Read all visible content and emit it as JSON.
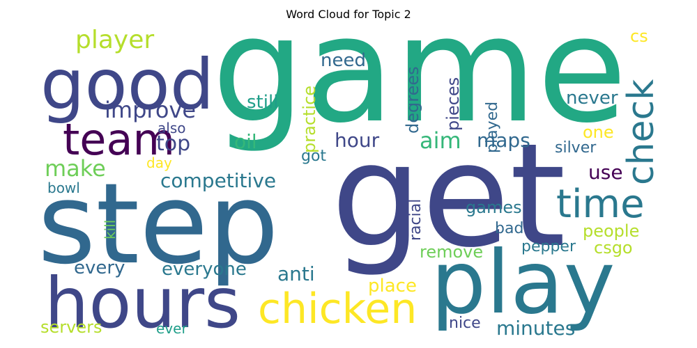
{
  "title": "Word Cloud for Topic 2",
  "words": {
    "game": "game",
    "get": "get",
    "step": "step",
    "play": "play",
    "hours": "hours",
    "good": "good",
    "chicken": "chicken",
    "team": "team",
    "check": "check",
    "time": "time",
    "player": "player",
    "improve": "improve",
    "top": "top",
    "make": "make",
    "competitive": "competitive",
    "every": "every",
    "everyone": "everyone",
    "servers": "servers",
    "ever": "ever",
    "also": "also",
    "day": "day",
    "oil": "oil",
    "still": "still",
    "need": "need",
    "practice": "practice",
    "degrees": "degrees",
    "pieces": "pieces",
    "played": "played",
    "never": "never",
    "cs": "cs",
    "aim": "aim",
    "maps": "maps",
    "hour": "hour",
    "got": "got",
    "one": "one",
    "silver": "silver",
    "use": "use",
    "bowl": "bowl",
    "kill": "kill",
    "racial": "racial",
    "games": "games",
    "people": "people",
    "bad": "bad",
    "anti": "anti",
    "pepper": "pepper",
    "csgo": "csgo",
    "remove": "remove",
    "place": "place",
    "nice": "nice",
    "minutes": "minutes"
  },
  "colors": {
    "teal_green": "#22a884",
    "dark_purple": "#3f4788",
    "deep_purple": "#440154",
    "blue": "#31688e",
    "teal": "#2a788e",
    "yellow": "#fde725",
    "lime": "#b5de2b",
    "light_green": "#6ece58",
    "green": "#35b779",
    "cyan": "#1f9e89"
  }
}
